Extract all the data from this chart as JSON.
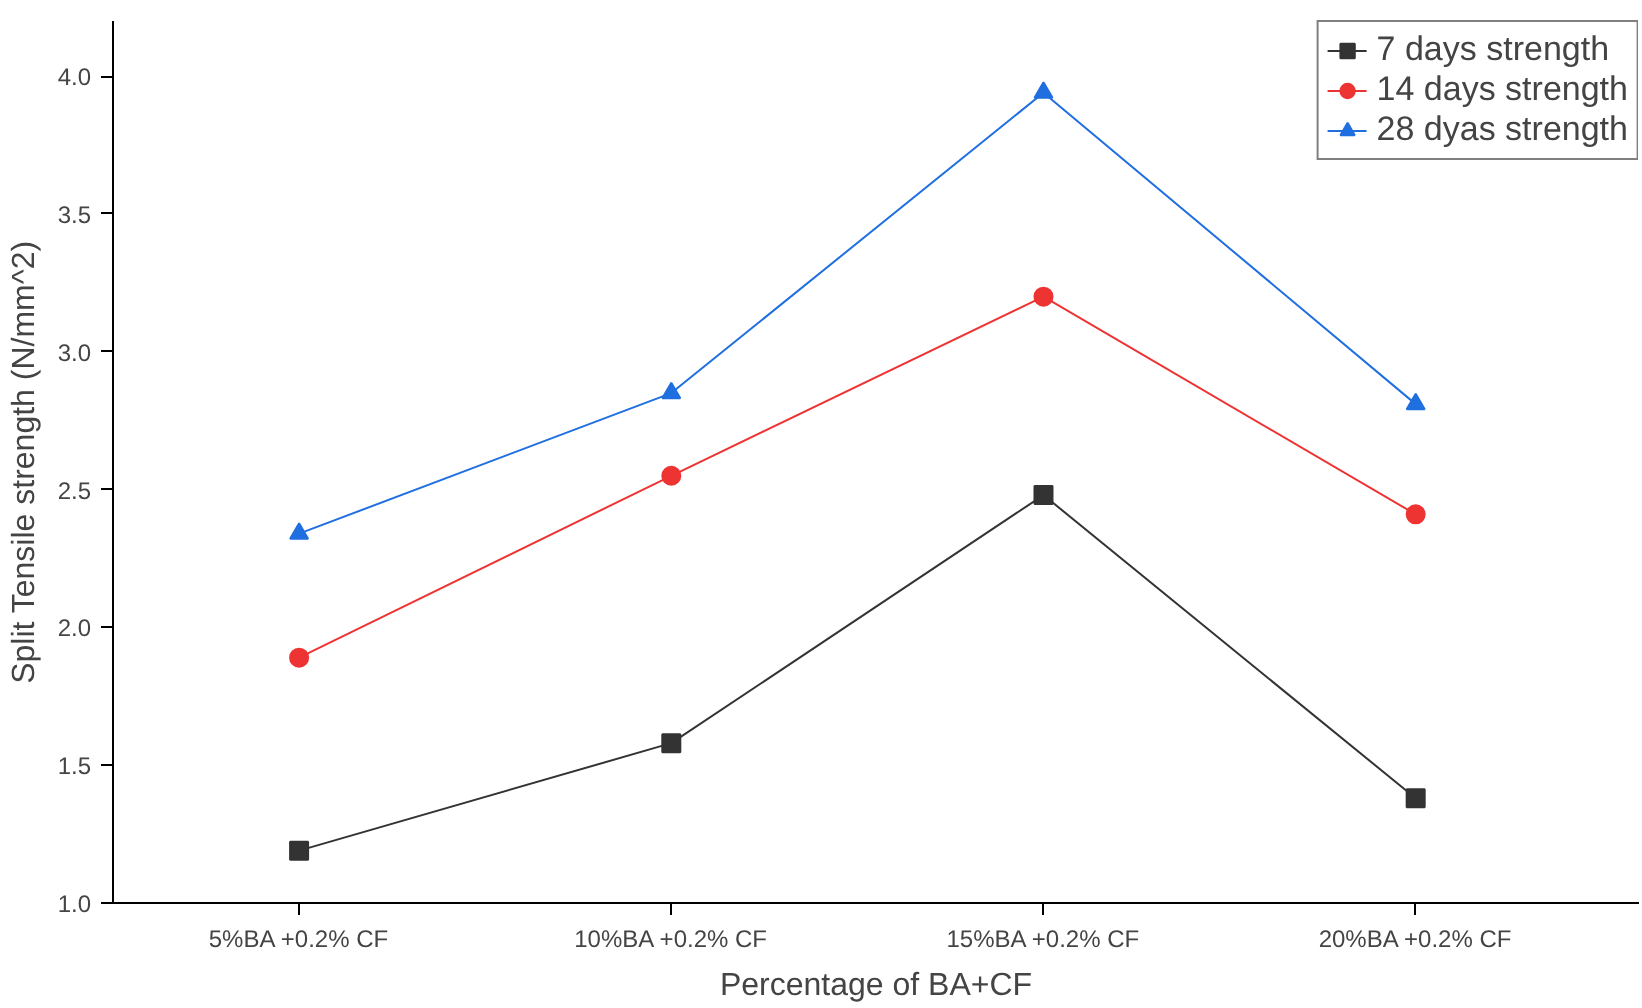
{
  "chart_data": {
    "type": "line",
    "xlabel": "Percentage of BA+CF",
    "ylabel": "Split Tensile strength (N/mm^2)",
    "categories": [
      "5%BA +0.2% CF",
      "10%BA +0.2% CF",
      "15%BA +0.2% CF",
      "20%BA +0.2% CF"
    ],
    "series": [
      {
        "name": "7 days strength",
        "color": "#333333",
        "marker": "square",
        "values": [
          1.19,
          1.58,
          2.48,
          1.38
        ]
      },
      {
        "name": "14 days strength",
        "color": "#ee3333",
        "marker": "circle",
        "values": [
          1.89,
          2.55,
          3.2,
          2.41
        ]
      },
      {
        "name": "28 dyas strength",
        "color": "#1f6fe0",
        "marker": "triangle",
        "values": [
          2.34,
          2.85,
          3.94,
          2.81
        ]
      }
    ],
    "ylim": [
      1.0,
      4.2
    ],
    "yticks": [
      {
        "value": 1.0,
        "label": "1.0"
      },
      {
        "value": 1.5,
        "label": "1.5"
      },
      {
        "value": 2.0,
        "label": "2.0"
      },
      {
        "value": 2.5,
        "label": "2.5"
      },
      {
        "value": 3.0,
        "label": "3.0"
      },
      {
        "value": 3.5,
        "label": "3.5"
      },
      {
        "value": 4.0,
        "label": "4.0"
      }
    ],
    "grid": false,
    "legend": "top right",
    "line_style": "solid"
  }
}
